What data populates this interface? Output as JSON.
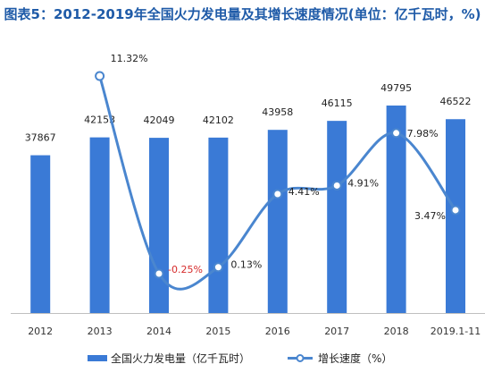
{
  "title": "图表5：2012-2019年全国火力发电量及其增长速度情况(单位：亿千瓦时，%)",
  "chart_data": {
    "type": "bar",
    "categories": [
      "2012",
      "2013",
      "2014",
      "2015",
      "2016",
      "2017",
      "2018",
      "2019.1-11"
    ],
    "series": [
      {
        "name": "全国火力发电量（亿千瓦时）",
        "type": "bar",
        "values": [
          37867,
          42153,
          42049,
          42102,
          43958,
          46115,
          49795,
          46522
        ],
        "color": "#3a7ad6"
      },
      {
        "name": "增长速度（%）",
        "type": "line",
        "values": [
          null,
          11.32,
          -0.25,
          0.13,
          4.41,
          4.91,
          7.98,
          3.47
        ],
        "labels": [
          "",
          "11.32%",
          "-0.25%",
          "0.13%",
          "4.41%",
          "4.91%",
          "7.98%",
          "3.47%"
        ],
        "color": "#4a86cf"
      }
    ],
    "negative_label_color": "#d62b2b",
    "grid": false,
    "legend_position": "bottom"
  }
}
